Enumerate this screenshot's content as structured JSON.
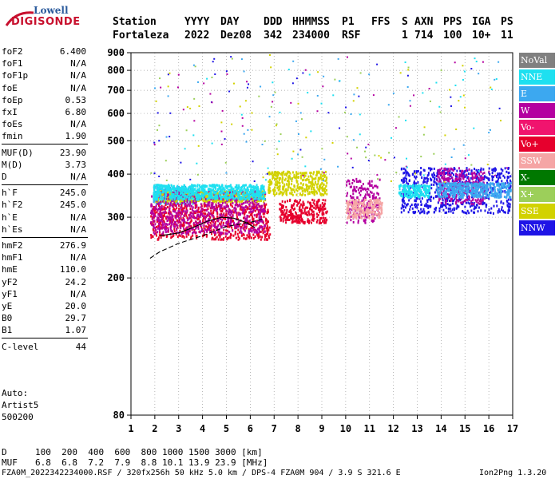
{
  "logo": {
    "line1": "Lowell",
    "line2": "DIGISONDE"
  },
  "header": {
    "labels": [
      "Station",
      "YYYY",
      "DAY",
      "DDD",
      "HHMMSS",
      "P1",
      "FFS",
      "S",
      "AXN",
      "PPS",
      "IGA",
      "PS"
    ],
    "values": [
      "Fortaleza",
      "2022",
      "Dez08",
      "342",
      "234000",
      "RSF",
      "1",
      "714",
      "100",
      "10+",
      "11"
    ]
  },
  "params": [
    {
      "k": "foF2",
      "v": "6.400"
    },
    {
      "k": "foF1",
      "v": "N/A"
    },
    {
      "k": "foF1p",
      "v": "N/A"
    },
    {
      "k": "foE",
      "v": "N/A"
    },
    {
      "k": "foEp",
      "v": "0.53"
    },
    {
      "k": "fxI",
      "v": "6.80"
    },
    {
      "k": "foEs",
      "v": "N/A"
    },
    {
      "k": "fmin",
      "v": "1.90"
    },
    {
      "k": "MUF(D)",
      "v": "23.90"
    },
    {
      "k": "M(D)",
      "v": "3.73"
    },
    {
      "k": "D",
      "v": "N/A"
    },
    {
      "k": "h`F",
      "v": "245.0"
    },
    {
      "k": "h`F2",
      "v": "245.0"
    },
    {
      "k": "h`E",
      "v": "N/A"
    },
    {
      "k": "h`Es",
      "v": "N/A"
    },
    {
      "k": "hmF2",
      "v": "276.9"
    },
    {
      "k": "hmF1",
      "v": "N/A"
    },
    {
      "k": "hmE",
      "v": "110.0"
    },
    {
      "k": "yF2",
      "v": "24.2"
    },
    {
      "k": "yF1",
      "v": "N/A"
    },
    {
      "k": "yE",
      "v": "20.0"
    },
    {
      "k": "B0",
      "v": "29.7"
    },
    {
      "k": "B1",
      "v": "1.07"
    },
    {
      "k": "C-level",
      "v": "44"
    }
  ],
  "auto": {
    "line1": "Auto:",
    "line2": "Artist5",
    "line3": "500200"
  },
  "legend": [
    {
      "label": "NoVal",
      "color": "#808080"
    },
    {
      "label": "NNE",
      "color": "#1ee0f0"
    },
    {
      "label": "E",
      "color": "#3ca8f0"
    },
    {
      "label": "W",
      "color": "#b400a0"
    },
    {
      "label": "Vo-",
      "color": "#f0146e"
    },
    {
      "label": "Vo+",
      "color": "#e6002d"
    },
    {
      "label": "SSW",
      "color": "#f5a5a5"
    },
    {
      "label": "X-",
      "color": "#007800"
    },
    {
      "label": "X+",
      "color": "#9ccf5a"
    },
    {
      "label": "SSE",
      "color": "#d2d200"
    },
    {
      "label": "NNW",
      "color": "#1e14e6"
    }
  ],
  "muf_table": {
    "d_label": "D",
    "d_values": "100  200  400  600  800 1000 1500 3000 [km]",
    "muf_label": "MUF",
    "muf_values": "6.8  6.8  7.2  7.9  8.8 10.1 13.9 23.9 [MHz]"
  },
  "footer": {
    "left": "FZA0M_2022342234000.RSF / 320fx256h 50 kHz 5.0 km / DPS-4 FZA0M 904 / 3.9 S 321.6 E",
    "right": "Ion2Png 1.3.20"
  },
  "chart_data": {
    "type": "scatter",
    "title": "",
    "xlabel": "",
    "ylabel": "",
    "xlim": [
      1,
      17
    ],
    "ylim": [
      80,
      900
    ],
    "y_scale": "log",
    "x_ticks": [
      1,
      2,
      3,
      4,
      5,
      6,
      7,
      8,
      9,
      10,
      11,
      12,
      13,
      14,
      15,
      16,
      17
    ],
    "y_ticks": [
      80,
      200,
      300,
      400,
      500,
      600,
      700,
      800,
      900
    ],
    "grid": "dotted",
    "clusters": [
      {
        "name": "E",
        "x": [
          1.9,
          3.6
        ],
        "y": [
          330,
          370
        ]
      },
      {
        "name": "SSE",
        "x": [
          2.0,
          6.6
        ],
        "y": [
          335,
          360
        ]
      },
      {
        "name": "Vo+",
        "x": [
          1.8,
          6.8
        ],
        "y": [
          260,
          330
        ]
      },
      {
        "name": "W",
        "x": [
          1.8,
          6.6
        ],
        "y": [
          270,
          360
        ]
      },
      {
        "name": "NNE",
        "x": [
          1.9,
          6.6
        ],
        "y": [
          340,
          375
        ]
      },
      {
        "name": "SSE",
        "x": [
          6.7,
          9.2
        ],
        "y": [
          350,
          410
        ]
      },
      {
        "name": "Vo+",
        "x": [
          7.2,
          9.2
        ],
        "y": [
          290,
          340
        ]
      },
      {
        "name": "W",
        "x": [
          10.0,
          11.4
        ],
        "y": [
          290,
          390
        ]
      },
      {
        "name": "SSW",
        "x": [
          10.0,
          11.5
        ],
        "y": [
          300,
          340
        ]
      },
      {
        "name": "NNW",
        "x": [
          12.3,
          16.9
        ],
        "y": [
          310,
          420
        ]
      },
      {
        "name": "NNE",
        "x": [
          12.2,
          13.5
        ],
        "y": [
          345,
          375
        ]
      },
      {
        "name": "W",
        "x": [
          13.8,
          15.8
        ],
        "y": [
          330,
          420
        ]
      },
      {
        "name": "E",
        "x": [
          13.8,
          16.9
        ],
        "y": [
          345,
          380
        ]
      }
    ],
    "traces": [
      {
        "name": "O-trace",
        "x": [
          1.8,
          2.2,
          3.0,
          4.0,
          5.0,
          6.0,
          6.6
        ],
        "y": [
          228,
          238,
          252,
          265,
          282,
          290,
          297
        ]
      },
      {
        "name": "X-trace",
        "x": [
          2.2,
          3.0,
          3.6,
          4.2,
          4.8,
          5.3,
          5.8,
          6.2
        ],
        "y": [
          265,
          270,
          280,
          292,
          300,
          298,
          290,
          280
        ]
      }
    ]
  }
}
